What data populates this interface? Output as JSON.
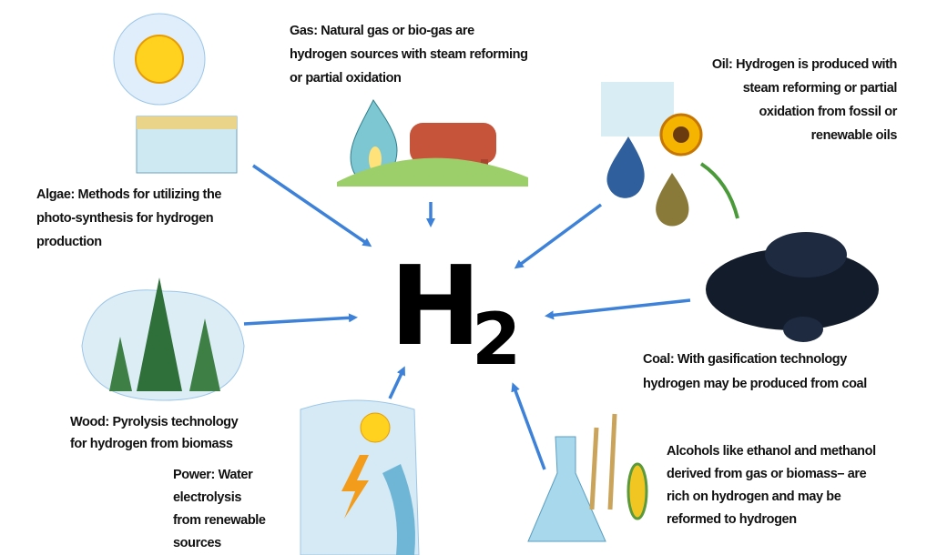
{
  "center": {
    "label": "H",
    "subscript": "2"
  },
  "nodes": [
    {
      "lines": [
        "Gas: Natural gas or bio-gas are",
        "hydrogen sources with steam reforming",
        "or partial oxidation"
      ]
    },
    {
      "lines": [
        "Oil: Hydrogen is produced with",
        "steam reforming or partial",
        "oxidation from fossil or",
        "renewable oils"
      ]
    },
    {
      "lines": [
        "Algae: Methods for utilizing the",
        "photo-synthesis for hydrogen",
        "production"
      ]
    },
    {
      "lines": [
        "Coal: With gasification technology",
        "hydrogen may be produced from coal"
      ]
    },
    {
      "lines": [
        "Wood: Pyrolysis technology",
        "for hydrogen from biomass"
      ]
    },
    {
      "lines": [
        "Alcohols like ethanol and methanol",
        "derived from gas or biomass– are",
        "rich on hydrogen and may be",
        "reformed to hydrogen"
      ]
    },
    {
      "lines": [
        "Power: Water",
        "electrolysis",
        "from renewable",
        "sources"
      ]
    }
  ]
}
